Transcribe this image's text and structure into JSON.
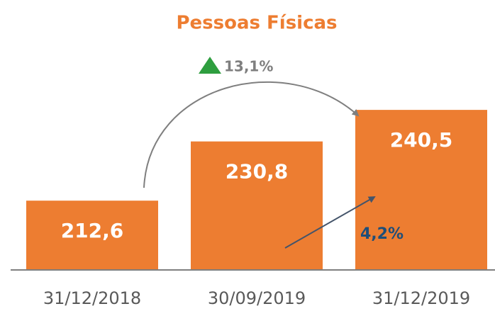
{
  "chart_data": {
    "type": "bar",
    "title": "Pessoas Físicas",
    "categories": [
      "31/12/2018",
      "30/09/2019",
      "31/12/2019"
    ],
    "values": [
      212.6,
      230.8,
      240.5
    ],
    "value_labels": [
      "212,6",
      "230,8",
      "240,5"
    ],
    "color": "#ed7d31",
    "ylim": [
      191.3,
      252.5
    ],
    "annotations": [
      "13,1%",
      "4,2%"
    ]
  }
}
